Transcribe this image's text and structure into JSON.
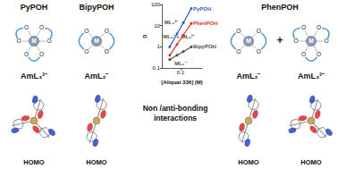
{
  "chart_data": {
    "type": "line",
    "x_label": "[Aliquat 336] (M)",
    "y_label": "D",
    "log": true,
    "grid": false,
    "marker": "circle",
    "x": [
      0.05,
      0.08,
      0.12,
      0.2
    ],
    "series": [
      {
        "name": "PyPOH",
        "color": "#2e5fd0",
        "values": [
          1,
          4.1,
          13.8,
          64
        ]
      },
      {
        "name": "PhenPOH",
        "color": "#e0302a",
        "values": [
          0.4,
          1.3,
          3.6,
          12.8
        ]
      },
      {
        "name": "BipyPOH",
        "color": "#505050",
        "values": [
          0.25,
          0.4,
          0.6,
          1.0
        ]
      }
    ],
    "xlim": [
      0.03,
      0.4
    ],
    "xticks": [
      0.1
    ],
    "ylim": [
      0.1,
      100
    ],
    "yticks": [
      0.1,
      1,
      10,
      100
    ],
    "annotations": [
      {
        "text": "ML₃³⁻",
        "x": 0.055,
        "y": 15
      },
      {
        "text": "ML₂⁻ + ML₃³⁻",
        "x": 0.09,
        "y": 3
      },
      {
        "text": "ML₂⁻",
        "x": 0.1,
        "y": 0.17
      }
    ]
  },
  "diagram": {
    "metal": "M",
    "donor": "O",
    "joiner": "+",
    "caption": [
      "Non /anti-bonding",
      "interactions"
    ],
    "ligands": [
      {
        "name": "PyPOH",
        "complexes": [
          {
            "label": "AmL₃³⁻",
            "ligand_count": 3,
            "orbital": "HOMO"
          }
        ]
      },
      {
        "name": "BipyPOH",
        "complexes": [
          {
            "label": "AmL₂⁻",
            "ligand_count": 2,
            "orbital": "HOMO"
          }
        ]
      },
      {
        "name": "PhenPOH",
        "complexes": [
          {
            "label": "AmL₂⁻",
            "ligand_count": 2,
            "orbital": "HOMO"
          },
          {
            "label": "AmL₃³⁻",
            "ligand_count": 3,
            "orbital": "HOMO"
          }
        ]
      }
    ]
  }
}
